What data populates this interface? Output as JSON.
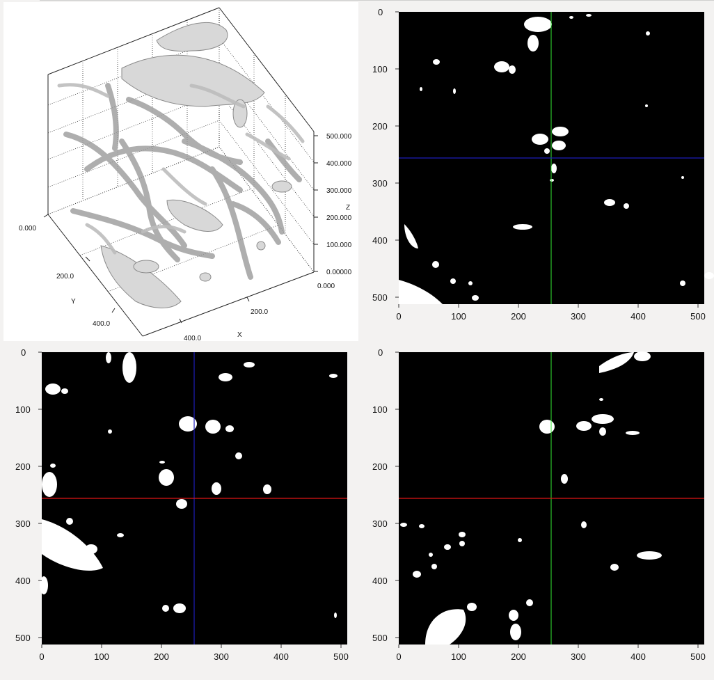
{
  "volume_view": {
    "axis_z_label": "Z",
    "axis_y_label": "Y",
    "axis_x_label": "X",
    "z_ticks": [
      "500.000",
      "400.000",
      "300.000",
      "200.000",
      "100.000",
      "0.00000"
    ],
    "y_ticks": [
      "0.000",
      "200.0",
      "400.0"
    ],
    "x_ticks": [
      "0.000",
      "200.0",
      "400.0"
    ]
  },
  "slice_views": {
    "x_ticks": [
      "0",
      "100",
      "200",
      "300",
      "400",
      "500"
    ],
    "y_ticks": [
      "0",
      "100",
      "200",
      "300",
      "400",
      "500"
    ],
    "colors": {
      "background": "#000000",
      "foreground": "#ffffff",
      "green_line": "#33e833",
      "blue_line": "#1d1db8",
      "red_line": "#e01515"
    }
  },
  "icons": [
    "3d-volume-render",
    "crosshair-lines"
  ]
}
